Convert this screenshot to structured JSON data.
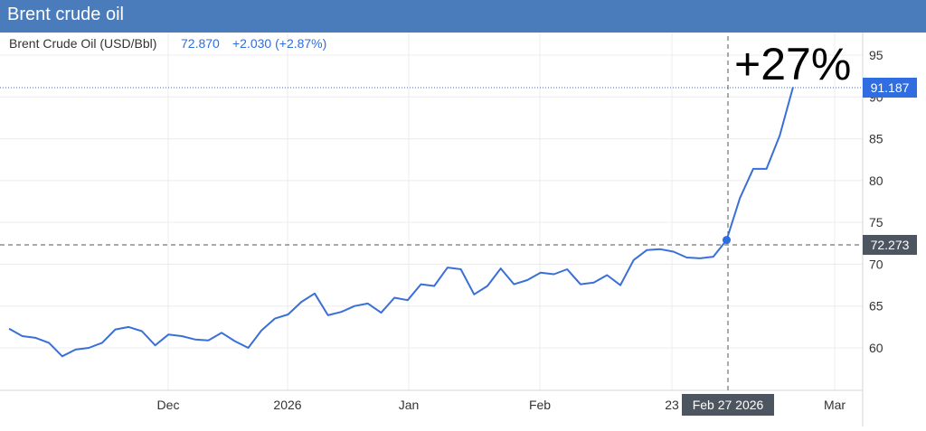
{
  "header": {
    "title": "Brent crude oil"
  },
  "legend": {
    "name": "Brent Crude Oil (USD/Bbl)",
    "value": "72.870",
    "change": "+2.030 (+2.87%)"
  },
  "annotation": {
    "text": "+27%"
  },
  "crosshair": {
    "date_label": "Feb 27 2026",
    "price_label": "72.273"
  },
  "last_price_label": "91.187",
  "colors": {
    "line": "#3a6fd8",
    "header": "#4a7bbb",
    "label_dark": "#4d5560",
    "label_blue": "#2f6de1"
  },
  "chart_data": {
    "type": "line",
    "title": "Brent crude oil",
    "ylim": [
      55,
      97
    ],
    "y_ticks": [
      60,
      65,
      70,
      75,
      80,
      85,
      90,
      95
    ],
    "x_tick_labels": [
      "Dec",
      "2026",
      "Jan",
      "Feb",
      "23",
      "Mar"
    ],
    "series": [
      {
        "name": "Brent Crude Oil (USD/Bbl)",
        "values": [
          62.3,
          61.4,
          61.2,
          60.6,
          59.0,
          59.8,
          60.0,
          60.6,
          62.2,
          62.5,
          62.0,
          60.3,
          61.6,
          61.4,
          61.0,
          60.9,
          61.8,
          60.8,
          60.0,
          62.1,
          63.5,
          64.0,
          65.5,
          66.5,
          63.9,
          64.3,
          65.0,
          65.3,
          64.2,
          66.0,
          65.7,
          67.6,
          67.4,
          69.6,
          69.4,
          66.4,
          67.4,
          69.5,
          67.6,
          68.1,
          69.0,
          68.8,
          69.4,
          67.6,
          67.8,
          68.7,
          67.5,
          70.5,
          71.7,
          71.8,
          71.5,
          70.8,
          70.7,
          70.9,
          72.9,
          77.9,
          81.4,
          81.4,
          85.4,
          91.187
        ]
      }
    ],
    "grid": true,
    "y_axis": "right"
  }
}
